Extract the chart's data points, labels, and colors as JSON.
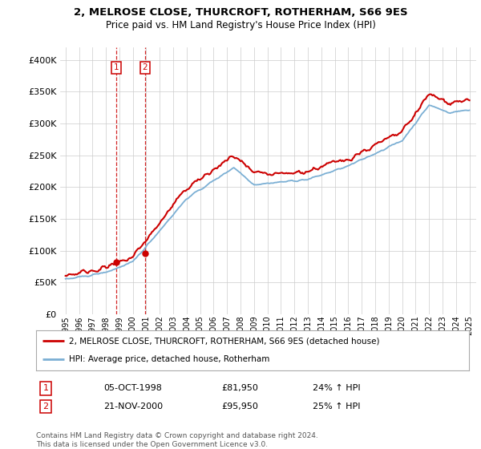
{
  "title1": "2, MELROSE CLOSE, THURCROFT, ROTHERHAM, S66 9ES",
  "title2": "Price paid vs. HM Land Registry's House Price Index (HPI)",
  "legend_line1": "2, MELROSE CLOSE, THURCROFT, ROTHERHAM, S66 9ES (detached house)",
  "legend_line2": "HPI: Average price, detached house, Rotherham",
  "transaction1_date": "05-OCT-1998",
  "transaction1_price": "£81,950",
  "transaction1_hpi": "24% ↑ HPI",
  "transaction2_date": "21-NOV-2000",
  "transaction2_price": "£95,950",
  "transaction2_hpi": "25% ↑ HPI",
  "footer": "Contains HM Land Registry data © Crown copyright and database right 2024.\nThis data is licensed under the Open Government Licence v3.0.",
  "red_color": "#cc0000",
  "blue_color": "#7bafd4",
  "marker1_x": 1998.75,
  "marker1_y": 81950,
  "marker2_x": 2000.9,
  "marker2_y": 95950,
  "ylim": [
    0,
    420000
  ],
  "yticks": [
    0,
    50000,
    100000,
    150000,
    200000,
    250000,
    300000,
    350000,
    400000
  ],
  "xlim_left": 1994.6,
  "xlim_right": 2025.5,
  "background_color": "#ffffff",
  "grid_color": "#cccccc",
  "title1_fontsize": 9.5,
  "title2_fontsize": 8.5
}
